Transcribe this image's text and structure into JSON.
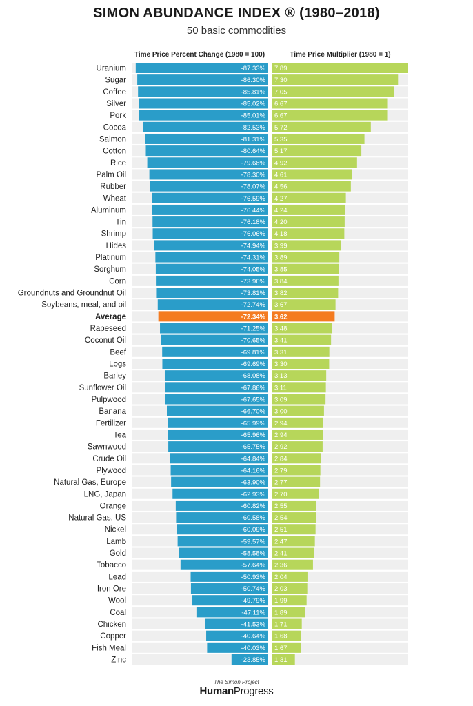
{
  "title": "SIMON ABUNDANCE INDEX ® (1980–2018)",
  "subtitle": "50 basic commodities",
  "footer": {
    "project": "The Simon Project",
    "brand_bold": "Human",
    "brand_regular": "Progress"
  },
  "colors": {
    "blue": "#2a9dc9",
    "green": "#b7d65a",
    "highlight": "#f47b20",
    "track": "#efefef"
  },
  "chart_data": {
    "type": "bar",
    "highlight_category": "Average",
    "categories": [
      "Uranium",
      "Sugar",
      "Coffee",
      "Silver",
      "Pork",
      "Cocoa",
      "Salmon",
      "Cotton",
      "Rice",
      "Palm Oil",
      "Rubber",
      "Wheat",
      "Aluminum",
      "Tin",
      "Shrimp",
      "Hides",
      "Platinum",
      "Sorghum",
      "Corn",
      "Groundnuts and Groundnut Oil",
      "Soybeans, meal, and oil",
      "Average",
      "Rapeseed",
      "Coconut Oil",
      "Beef",
      "Logs",
      "Barley",
      "Sunflower Oil",
      "Pulpwood",
      "Banana",
      "Fertilizer",
      "Tea",
      "Sawnwood",
      "Crude Oil",
      "Plywood",
      "Natural Gas, Europe",
      "LNG, Japan",
      "Orange",
      "Natural Gas, US",
      "Nickel",
      "Lamb",
      "Gold",
      "Tobacco",
      "Lead",
      "Iron Ore",
      "Wool",
      "Coal",
      "Chicken",
      "Copper",
      "Fish Meal",
      "Zinc"
    ],
    "series": [
      {
        "name": "Time Price Percent Change (1980 = 100)",
        "values": [
          -87.33,
          -86.3,
          -85.81,
          -85.02,
          -85.01,
          -82.53,
          -81.31,
          -80.64,
          -79.68,
          -78.3,
          -78.07,
          -76.59,
          -76.44,
          -76.18,
          -76.06,
          -74.94,
          -74.31,
          -74.05,
          -73.96,
          -73.81,
          -72.74,
          -72.34,
          -71.25,
          -70.65,
          -69.81,
          -69.69,
          -68.08,
          -67.86,
          -67.65,
          -66.7,
          -65.99,
          -65.96,
          -65.75,
          -64.84,
          -64.16,
          -63.9,
          -62.93,
          -60.82,
          -60.58,
          -60.09,
          -59.57,
          -58.58,
          -57.64,
          -50.93,
          -50.74,
          -49.79,
          -47.11,
          -41.53,
          -40.64,
          -40.03,
          -23.85
        ],
        "labels": [
          "-87.33%",
          "-86.30%",
          "-85.81%",
          "-85.02%",
          "-85.01%",
          "-82.53%",
          "-81.31%",
          "-80.64%",
          "-79.68%",
          "-78.30%",
          "-78.07%",
          "-76.59%",
          "-76.44%",
          "-76.18%",
          "-76.06%",
          "-74.94%",
          "-74.31%",
          "-74.05%",
          "-73.96%",
          "-73.81%",
          "-72.74%",
          "-72.34%",
          "-71.25%",
          "-70.65%",
          "-69.81%",
          "-69.69%",
          "-68.08%",
          "-67.86%",
          "-67.65%",
          "-66.70%",
          "-65.99%",
          "-65.96%",
          "-65.75%",
          "-64.84%",
          "-64.16%",
          "-63.90%",
          "-62.93%",
          "-60.82%",
          "-60.58%",
          "-60.09%",
          "-59.57%",
          "-58.58%",
          "-57.64%",
          "-50.93%",
          "-50.74%",
          "-49.79%",
          "-47.11%",
          "-41.53%",
          "-40.64%",
          "-40.03%",
          "-23.85%"
        ]
      },
      {
        "name": "Time Price Multiplier (1980 = 1)",
        "values": [
          7.89,
          7.3,
          7.05,
          6.67,
          6.67,
          5.72,
          5.35,
          5.17,
          4.92,
          4.61,
          4.56,
          4.27,
          4.24,
          4.2,
          4.18,
          3.99,
          3.89,
          3.85,
          3.84,
          3.82,
          3.67,
          3.62,
          3.48,
          3.41,
          3.31,
          3.3,
          3.13,
          3.11,
          3.09,
          3.0,
          2.94,
          2.94,
          2.92,
          2.84,
          2.79,
          2.77,
          2.7,
          2.55,
          2.54,
          2.51,
          2.47,
          2.41,
          2.36,
          2.04,
          2.03,
          1.99,
          1.89,
          1.71,
          1.68,
          1.67,
          1.31
        ],
        "labels": [
          "7.89",
          "7.30",
          "7.05",
          "6.67",
          "6.67",
          "5.72",
          "5.35",
          "5.17",
          "4.92",
          "4.61",
          "4.56",
          "4.27",
          "4.24",
          "4.20",
          "4.18",
          "3.99",
          "3.89",
          "3.85",
          "3.84",
          "3.82",
          "3.67",
          "3.62",
          "3.48",
          "3.41",
          "3.31",
          "3.30",
          "3.13",
          "3.11",
          "3.09",
          "3.00",
          "2.94",
          "2.94",
          "2.92",
          "2.84",
          "2.79",
          "2.77",
          "2.70",
          "2.55",
          "2.54",
          "2.51",
          "2.47",
          "2.41",
          "2.36",
          "2.04",
          "2.03",
          "1.99",
          "1.89",
          "1.71",
          "1.68",
          "1.67",
          "1.31"
        ]
      }
    ]
  }
}
